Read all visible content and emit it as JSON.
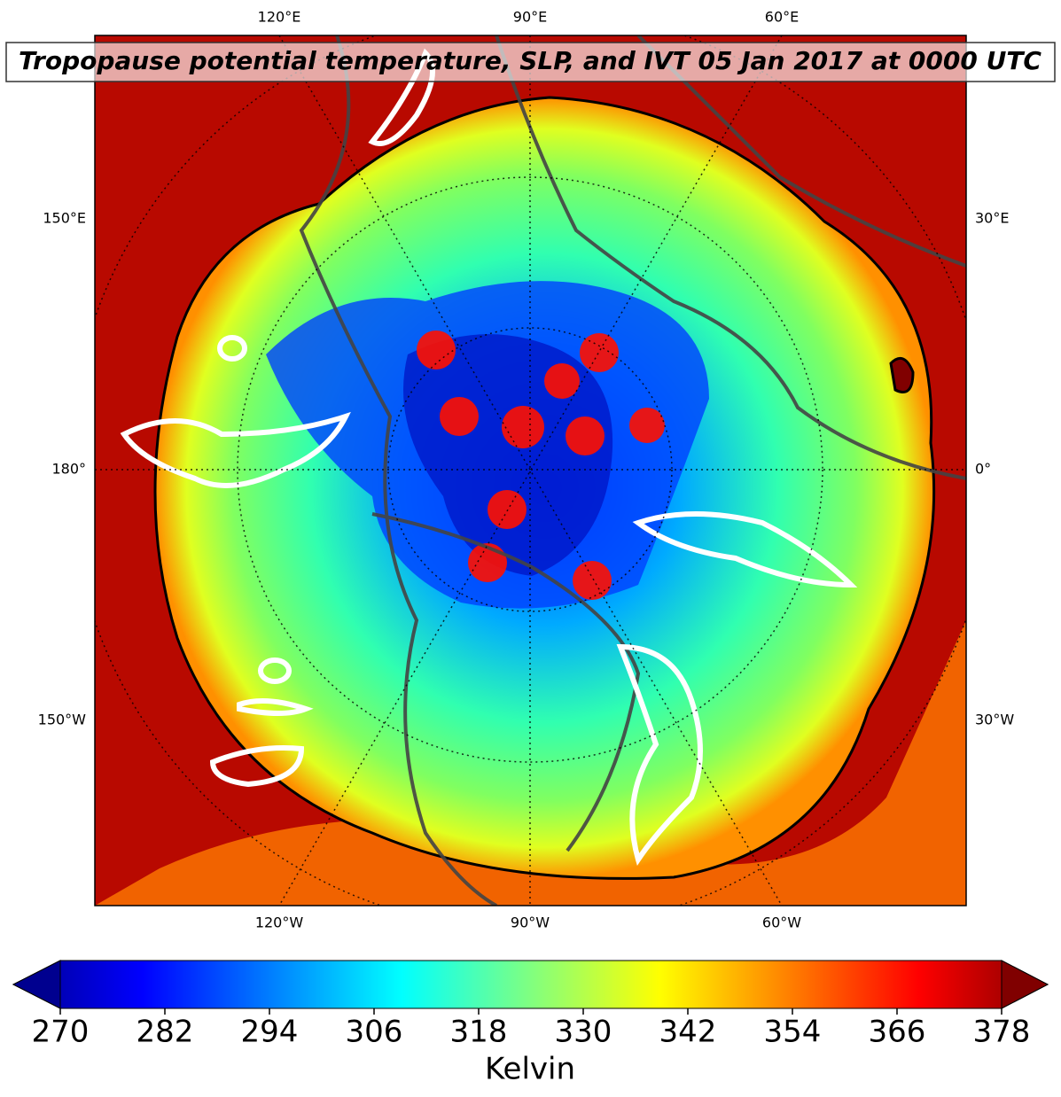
{
  "map": {
    "title": "Tropopause potential temperature, SLP, and IVT 05 Jan 2017 at 0000 UTC",
    "labels": {
      "top": [
        "120°E",
        "90°E",
        "60°E"
      ],
      "left": [
        "150°E",
        "180°",
        "150°W"
      ],
      "right": [
        "30°E",
        "0°",
        "30°W"
      ],
      "bottom": [
        "120°W",
        "90°W",
        "60°W"
      ]
    }
  },
  "colorbar": {
    "label": "Kelvin",
    "range": [
      270,
      378
    ],
    "ticks": [
      270,
      282,
      294,
      306,
      318,
      330,
      342,
      354,
      366,
      378
    ]
  }
}
